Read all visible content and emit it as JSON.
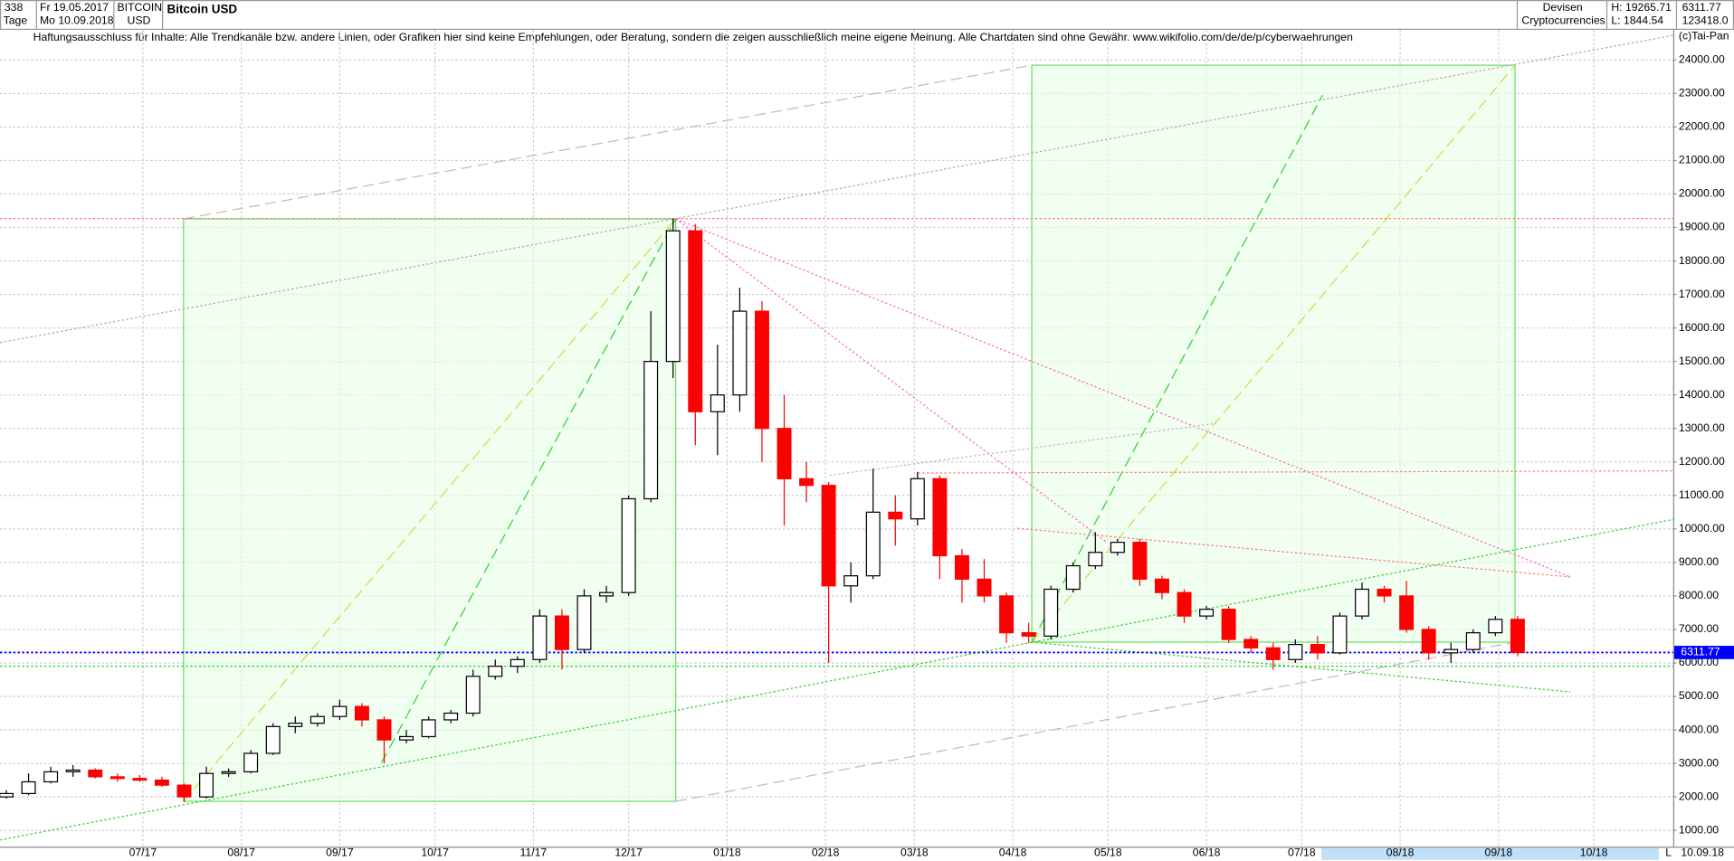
{
  "header": {
    "count": "338",
    "start": "Fr 19.05.2017",
    "period": "Tage",
    "end": "Mo 10.09.2018",
    "symbol": "BITCOIN",
    "currency": "USD",
    "market": "Devisen",
    "sector": "Cryptocurrencies",
    "high": "H: 19265.71",
    "low": "L: 1844.54",
    "last": "6311.77",
    "volume": "123418.0",
    "disclaimer": "Haftungsausschluss für Inhalte: Alle Trendkanäle bzw. andere Linien, oder Grafiken hier sind keine Empfehlungen, oder Beratung, sondern die zeigen ausschließlich meine eigene Meinung. Alle Chartdaten sind ohne Gewähr.  www.wikifolio.com/de/de/p/cyberwaehrungen",
    "copyright": "(c)Tai-Pan",
    "footer_date": "10.09.18",
    "footer_mark": "L"
  },
  "chart_data": {
    "type": "candlestick",
    "title": "Bitcoin USD",
    "up_color": "#000000",
    "down_color": "#ff0000",
    "x": [
      "2017-05-19",
      "2017-05-26",
      "2017-06-02",
      "2017-06-09",
      "2017-06-16",
      "2017-06-23",
      "2017-06-30",
      "2017-07-07",
      "2017-07-14",
      "2017-07-21",
      "2017-07-28",
      "2017-08-04",
      "2017-08-11",
      "2017-08-18",
      "2017-08-25",
      "2017-09-01",
      "2017-09-08",
      "2017-09-15",
      "2017-09-22",
      "2017-09-29",
      "2017-10-06",
      "2017-10-13",
      "2017-10-20",
      "2017-10-27",
      "2017-11-03",
      "2017-11-10",
      "2017-11-17",
      "2017-11-24",
      "2017-12-01",
      "2017-12-08",
      "2017-12-15",
      "2017-12-22",
      "2017-12-29",
      "2018-01-05",
      "2018-01-12",
      "2018-01-19",
      "2018-01-26",
      "2018-02-02",
      "2018-02-09",
      "2018-02-16",
      "2018-02-23",
      "2018-03-02",
      "2018-03-09",
      "2018-03-16",
      "2018-03-23",
      "2018-03-30",
      "2018-04-06",
      "2018-04-13",
      "2018-04-20",
      "2018-04-27",
      "2018-05-04",
      "2018-05-11",
      "2018-05-18",
      "2018-05-25",
      "2018-06-01",
      "2018-06-08",
      "2018-06-15",
      "2018-06-22",
      "2018-06-29",
      "2018-07-06",
      "2018-07-13",
      "2018-07-20",
      "2018-07-27",
      "2018-08-03",
      "2018-08-10",
      "2018-08-17",
      "2018-08-24",
      "2018-08-31",
      "2018-09-07"
    ],
    "open": [
      2000,
      2100,
      2450,
      2750,
      2800,
      2600,
      2550,
      2500,
      2350,
      2000,
      2700,
      2750,
      3300,
      4100,
      4200,
      4400,
      4700,
      4300,
      3700,
      3800,
      4300,
      4500,
      5600,
      5900,
      6100,
      7400,
      6400,
      8000,
      8100,
      10900,
      15000,
      18900,
      13500,
      14000,
      16500,
      13000,
      11500,
      11300,
      8300,
      8600,
      10500,
      10300,
      11500,
      9200,
      8500,
      8000,
      6900,
      6800,
      8200,
      8900,
      9300,
      9600,
      8500,
      8100,
      7400,
      7600,
      6700,
      6450,
      6100,
      6550,
      6300,
      7400,
      8200,
      8000,
      7000,
      6300,
      6400,
      6900,
      7300
    ],
    "high": [
      2200,
      2700,
      2900,
      2950,
      2850,
      2700,
      2650,
      2600,
      2400,
      2900,
      2850,
      3400,
      4200,
      4400,
      4500,
      4900,
      4800,
      4400,
      4000,
      4400,
      4600,
      5800,
      6100,
      6200,
      7600,
      7600,
      8200,
      8300,
      11000,
      16500,
      19265.71,
      19100,
      15500,
      17200,
      16800,
      14000,
      12000,
      11400,
      9000,
      11800,
      11000,
      11700,
      11600,
      9400,
      9100,
      8100,
      7200,
      8300,
      9000,
      9900,
      9700,
      9700,
      8600,
      8200,
      7700,
      7700,
      6800,
      6600,
      6700,
      6800,
      7500,
      8400,
      8300,
      8450,
      7100,
      6600,
      7000,
      7400,
      7400
    ],
    "low": [
      1950,
      2050,
      2400,
      2600,
      2550,
      2450,
      2450,
      2300,
      1844.54,
      1950,
      2600,
      2700,
      3250,
      3900,
      4100,
      4300,
      4100,
      3000,
      3600,
      3750,
      4200,
      4400,
      5500,
      5700,
      6000,
      5800,
      6300,
      7800,
      8000,
      10800,
      14500,
      12500,
      12200,
      13500,
      12000,
      10100,
      10800,
      6000,
      7800,
      8500,
      9500,
      10100,
      8500,
      7800,
      7800,
      6600,
      6600,
      6700,
      8100,
      8800,
      9200,
      8300,
      7900,
      7200,
      7300,
      6600,
      6300,
      5800,
      6000,
      6100,
      6250,
      7300,
      7800,
      6900,
      6100,
      6000,
      6300,
      6800,
      6200
    ],
    "close": [
      2100,
      2450,
      2750,
      2800,
      2600,
      2550,
      2500,
      2350,
      2000,
      2700,
      2750,
      3300,
      4100,
      4200,
      4400,
      4700,
      4300,
      3700,
      3800,
      4300,
      4500,
      5600,
      5900,
      6100,
      7400,
      6400,
      8000,
      8100,
      10900,
      15000,
      18900,
      13500,
      14000,
      16500,
      13000,
      11500,
      11300,
      8300,
      8600,
      10500,
      10300,
      11500,
      9200,
      8500,
      8000,
      6900,
      6800,
      8200,
      8900,
      9300,
      9600,
      8500,
      8100,
      7400,
      7600,
      6700,
      6450,
      6100,
      6550,
      6300,
      7400,
      8200,
      8000,
      7000,
      6300,
      6400,
      6900,
      7300,
      6311.77
    ],
    "last_value": 6311.77,
    "hlines": [
      {
        "value": 6311.77,
        "color": "#0000ff"
      },
      {
        "value": 5900,
        "color": "#00cc00"
      },
      {
        "value": 19265.71,
        "color": "#ff7777"
      }
    ],
    "xlim": [
      "2017-05-17",
      "2018-10-26"
    ],
    "xticks": [
      {
        "value": "2017-07-01",
        "label": "07/17"
      },
      {
        "value": "2017-08-01",
        "label": "08/17"
      },
      {
        "value": "2017-09-01",
        "label": "09/17"
      },
      {
        "value": "2017-10-01",
        "label": "10/17"
      },
      {
        "value": "2017-11-01",
        "label": "11/17"
      },
      {
        "value": "2017-12-01",
        "label": "12/17"
      },
      {
        "value": "2018-01-01",
        "label": "01/18"
      },
      {
        "value": "2018-02-01",
        "label": "02/18"
      },
      {
        "value": "2018-03-01",
        "label": "03/18"
      },
      {
        "value": "2018-04-01",
        "label": "04/18"
      },
      {
        "value": "2018-05-01",
        "label": "05/18"
      },
      {
        "value": "2018-06-01",
        "label": "06/18"
      },
      {
        "value": "2018-07-01",
        "label": "07/18"
      },
      {
        "value": "2018-08-01",
        "label": "08/18"
      },
      {
        "value": "2018-09-01",
        "label": "09/18"
      },
      {
        "value": "2018-10-01",
        "label": "10/18"
      }
    ],
    "ylim": [
      515,
      24900
    ],
    "yticks": [
      {
        "value": 1000,
        "label": "1000.00"
      },
      {
        "value": 2000,
        "label": "2000.00"
      },
      {
        "value": 3000,
        "label": "3000.00"
      },
      {
        "value": 4000,
        "label": "4000.00"
      },
      {
        "value": 5000,
        "label": "5000.00"
      },
      {
        "value": 6000,
        "label": "6000.00"
      },
      {
        "value": 7000,
        "label": "7000.00"
      },
      {
        "value": 8000,
        "label": "8000.00"
      },
      {
        "value": 9000,
        "label": "9000.00"
      },
      {
        "value": 10000,
        "label": "10000.00"
      },
      {
        "value": 11000,
        "label": "11000.00"
      },
      {
        "value": 12000,
        "label": "12000.00"
      },
      {
        "value": 13000,
        "label": "13000.00"
      },
      {
        "value": 14000,
        "label": "14000.00"
      },
      {
        "value": 15000,
        "label": "15000.00"
      },
      {
        "value": 16000,
        "label": "16000.00"
      },
      {
        "value": 17000,
        "label": "17000.00"
      },
      {
        "value": 18000,
        "label": "18000.00"
      },
      {
        "value": 19000,
        "label": "19000.00"
      },
      {
        "value": 20000,
        "label": "20000.00"
      },
      {
        "value": 21000,
        "label": "21000.00"
      },
      {
        "value": 22000,
        "label": "22000.00"
      },
      {
        "value": 23000,
        "label": "23000.00"
      },
      {
        "value": 24000,
        "label": "24000.00"
      }
    ],
    "grid": true
  }
}
